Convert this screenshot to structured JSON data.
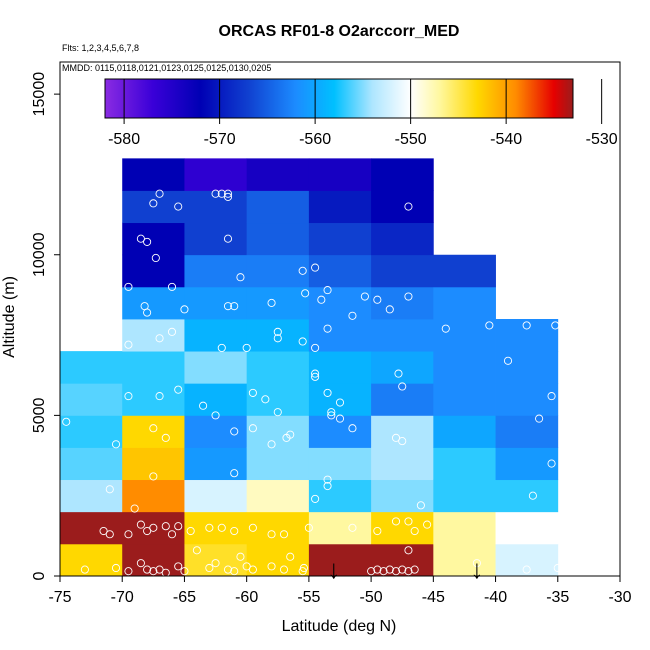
{
  "chart_data": {
    "type": "heatmap",
    "title": "ORCAS RF01-8 O2arccorr_MED",
    "note_flights": "Flts: 1,2,3,4,5,6,7,8",
    "note_dates": "MMDD: 0115,0118,0121,0123,0125,0125,0130,0205",
    "xlabel": "Latitude (deg N)",
    "ylabel": "Altitude (m)",
    "xlim": [
      -75,
      -30
    ],
    "ylim": [
      0,
      16000
    ],
    "x_ticks": [
      "-75",
      "-70",
      "-65",
      "-60",
      "-55",
      "-50",
      "-45",
      "-40",
      "-35",
      "-30"
    ],
    "y_ticks": [
      "0",
      "5000",
      "10000",
      "15000"
    ],
    "colorbar": {
      "range": [
        -582,
        -533
      ],
      "ticks": [
        -580,
        -570,
        -560,
        -550,
        -540,
        -530
      ],
      "tick_labels": [
        "-580",
        "-570",
        "-560",
        "-550",
        "-540",
        "-530"
      ],
      "stops": [
        {
          "v": -582,
          "c": "#8a2be2"
        },
        {
          "v": -577,
          "c": "#3a00d8"
        },
        {
          "v": -572,
          "c": "#0000b4"
        },
        {
          "v": -567,
          "c": "#1040d0"
        },
        {
          "v": -562,
          "c": "#1c8cff"
        },
        {
          "v": -558,
          "c": "#00c0ff"
        },
        {
          "v": -554,
          "c": "#aee6ff"
        },
        {
          "v": -550,
          "c": "#ffffff"
        },
        {
          "v": -547,
          "c": "#fff8a0"
        },
        {
          "v": -543,
          "c": "#ffd800"
        },
        {
          "v": -539,
          "c": "#ff8c00"
        },
        {
          "v": -535,
          "c": "#e60000"
        },
        {
          "v": -533,
          "c": "#9b1c1c"
        }
      ]
    },
    "bin_width_deg": 5,
    "bin_height_m": 1000,
    "columns": [
      {
        "lat_start": -75,
        "values": [
          -543,
          -533,
          -554,
          -556,
          -557,
          -556,
          -557
        ]
      },
      {
        "lat_start": -70,
        "values": [
          -533,
          -533,
          -539,
          -542,
          -543,
          -557,
          -557,
          -554,
          -561,
          -572,
          -572,
          -567,
          -572
        ]
      },
      {
        "lat_start": -65,
        "values": [
          -544,
          -543,
          -552,
          -561,
          -562,
          -559,
          -555,
          -559,
          -561,
          -563,
          -567,
          -567,
          -576
        ]
      },
      {
        "lat_start": -60,
        "values": [
          -543,
          -543,
          -548,
          -555,
          -555,
          -557,
          -557,
          -559,
          -561,
          -563,
          -565,
          -565,
          -574
        ]
      },
      {
        "lat_start": -55,
        "values": [
          -533,
          -547,
          -557,
          -555,
          -562,
          -559,
          -559,
          -562,
          -562,
          -565,
          -567,
          -570,
          -574
        ]
      },
      {
        "lat_start": -50,
        "values": [
          -533,
          -543,
          -555,
          -554,
          -554,
          -563,
          -560,
          -562,
          -563,
          -567,
          -569,
          -572,
          -572
        ]
      },
      {
        "lat_start": -45,
        "values": [
          -547,
          -547,
          -557,
          -557,
          -560,
          -562,
          -562,
          -562,
          -562,
          -567
        ]
      },
      {
        "lat_start": -40,
        "values": [
          -552,
          -550,
          -557,
          -561,
          -563,
          -562,
          -562,
          -562
        ]
      }
    ],
    "sample_points": [
      [
        -73,
        200
      ],
      [
        -70.5,
        250
      ],
      [
        -69.5,
        150
      ],
      [
        -68.5,
        400
      ],
      [
        -68,
        200
      ],
      [
        -67.5,
        150
      ],
      [
        -67,
        200
      ],
      [
        -66.5,
        100
      ],
      [
        -65.5,
        300
      ],
      [
        -65,
        150
      ],
      [
        -64,
        800
      ],
      [
        -63,
        250
      ],
      [
        -62.5,
        400
      ],
      [
        -61.5,
        200
      ],
      [
        -61,
        150
      ],
      [
        -60.5,
        600
      ],
      [
        -60,
        300
      ],
      [
        -59.5,
        200
      ],
      [
        -58,
        300
      ],
      [
        -57,
        200
      ],
      [
        -56.5,
        600
      ],
      [
        -55.5,
        150
      ],
      [
        -55.4,
        250
      ],
      [
        -50,
        150
      ],
      [
        -49.5,
        200
      ],
      [
        -49,
        150
      ],
      [
        -48.5,
        200
      ],
      [
        -48,
        150
      ],
      [
        -47.5,
        200
      ],
      [
        -47,
        150
      ],
      [
        -46.5,
        200
      ],
      [
        -47,
        800
      ],
      [
        -41.5,
        400
      ],
      [
        -37.5,
        200
      ],
      [
        -35,
        250
      ],
      [
        -71.5,
        1400
      ],
      [
        -71,
        1300
      ],
      [
        -69.5,
        1300
      ],
      [
        -68.5,
        1600
      ],
      [
        -68,
        1400
      ],
      [
        -67.5,
        1500
      ],
      [
        -66.5,
        1550
      ],
      [
        -66,
        1300
      ],
      [
        -65.5,
        1550
      ],
      [
        -64.5,
        1400
      ],
      [
        -63,
        1500
      ],
      [
        -62,
        1500
      ],
      [
        -61,
        1400
      ],
      [
        -59.5,
        1500
      ],
      [
        -58,
        1300
      ],
      [
        -57,
        1300
      ],
      [
        -55,
        1500
      ],
      [
        -51.5,
        1500
      ],
      [
        -49.5,
        1400
      ],
      [
        -48,
        1700
      ],
      [
        -47,
        1700
      ],
      [
        -46.5,
        1400
      ],
      [
        -45.5,
        1600
      ],
      [
        -71,
        2700
      ],
      [
        -69,
        2100
      ],
      [
        -67.5,
        3100
      ],
      [
        -61,
        3200
      ],
      [
        -54.5,
        2400
      ],
      [
        -53.5,
        3000
      ],
      [
        -53.5,
        2800
      ],
      [
        -46,
        2200
      ],
      [
        -37,
        2500
      ],
      [
        -35.5,
        3500
      ],
      [
        -74.5,
        4800
      ],
      [
        -70.5,
        4100
      ],
      [
        -67.5,
        4600
      ],
      [
        -66.5,
        4300
      ],
      [
        -61,
        4500
      ],
      [
        -59.5,
        4600
      ],
      [
        -58,
        4100
      ],
      [
        -56.5,
        4400
      ],
      [
        -56.8,
        4300
      ],
      [
        -53.2,
        5100
      ],
      [
        -52.5,
        4900
      ],
      [
        -52.5,
        5400
      ],
      [
        -51.5,
        4600
      ],
      [
        -48,
        4300
      ],
      [
        -47.5,
        4200
      ],
      [
        -36.5,
        4900
      ],
      [
        -69.5,
        5600
      ],
      [
        -67,
        5600
      ],
      [
        -65.5,
        5800
      ],
      [
        -63.5,
        5300
      ],
      [
        -62.5,
        5000
      ],
      [
        -59.5,
        5700
      ],
      [
        -58.5,
        5500
      ],
      [
        -57.5,
        5100
      ],
      [
        -54.5,
        6300
      ],
      [
        -54.5,
        6200
      ],
      [
        -53.5,
        5700
      ],
      [
        -53.2,
        5000
      ],
      [
        -47.5,
        5900
      ],
      [
        -47.8,
        6300
      ],
      [
        -39,
        6700
      ],
      [
        -35.5,
        5600
      ],
      [
        -69.5,
        7200
      ],
      [
        -67,
        7400
      ],
      [
        -66,
        7600
      ],
      [
        -62,
        7100
      ],
      [
        -60,
        7100
      ],
      [
        -57.5,
        7600
      ],
      [
        -57.5,
        7400
      ],
      [
        -55.5,
        7300
      ],
      [
        -54.5,
        7100
      ],
      [
        -53.5,
        7700
      ],
      [
        -51.5,
        8100
      ],
      [
        -49.5,
        8600
      ],
      [
        -48.5,
        8300
      ],
      [
        -44,
        7700
      ],
      [
        -40.5,
        7800
      ],
      [
        -37.5,
        7800
      ],
      [
        -35.2,
        7800
      ],
      [
        -68.2,
        8400
      ],
      [
        -68,
        8200
      ],
      [
        -65,
        8300
      ],
      [
        -61.5,
        8400
      ],
      [
        -61,
        8400
      ],
      [
        -58,
        8500
      ],
      [
        -55.3,
        8800
      ],
      [
        -54,
        8600
      ],
      [
        -53.5,
        8900
      ],
      [
        -54.5,
        9600
      ],
      [
        -55.5,
        9500
      ],
      [
        -50.5,
        8700
      ],
      [
        -47,
        8700
      ],
      [
        -69.5,
        9000
      ],
      [
        -67.3,
        9900
      ],
      [
        -66,
        9000
      ],
      [
        -60.5,
        9300
      ],
      [
        -67.5,
        11600
      ],
      [
        -67,
        11900
      ],
      [
        -65.5,
        11500
      ],
      [
        -62.5,
        11900
      ],
      [
        -62,
        11900
      ],
      [
        -61.5,
        11800
      ],
      [
        -61.5,
        11900
      ],
      [
        -47,
        11500
      ],
      [
        -68.5,
        10500
      ],
      [
        -68,
        10400
      ],
      [
        -61.5,
        10500
      ]
    ],
    "arrows": [
      {
        "lat": -53,
        "label": "↓"
      },
      {
        "lat": -41.5,
        "label": "↓"
      }
    ]
  }
}
